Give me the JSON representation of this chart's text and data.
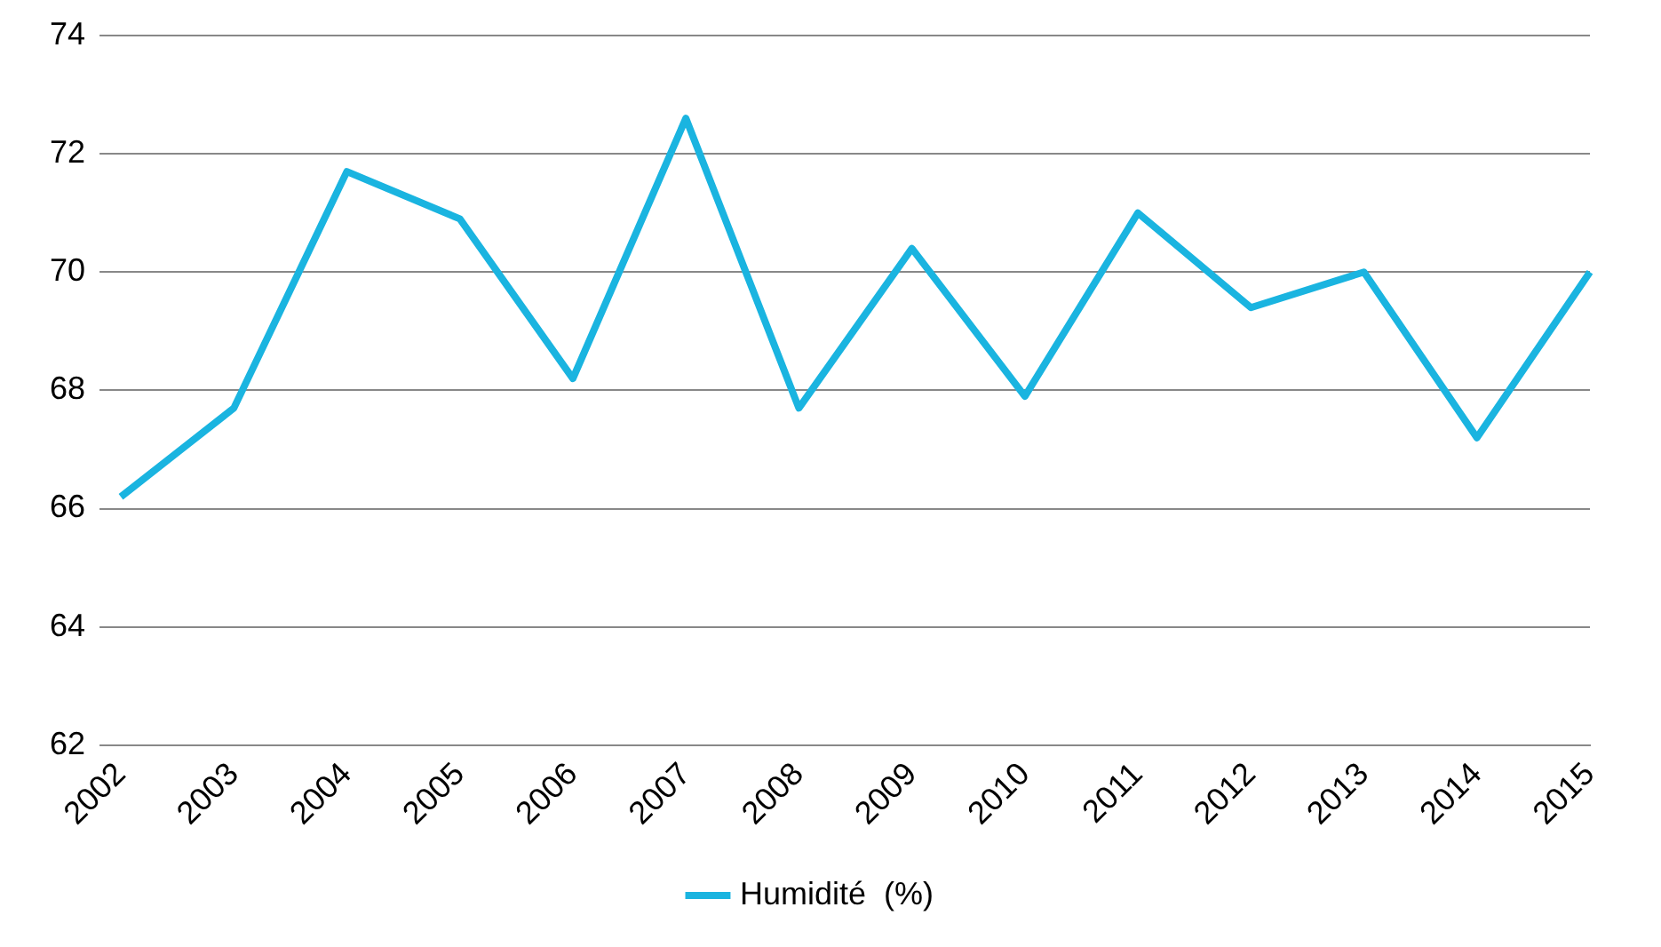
{
  "chart_data": {
    "type": "line",
    "categories": [
      "2002",
      "2003",
      "2004",
      "2005",
      "2006",
      "2007",
      "2008",
      "2009",
      "2010",
      "2011",
      "2012",
      "2013",
      "2014",
      "2015"
    ],
    "series": [
      {
        "name": "Humidité  (%)",
        "color": "#1ab4e0",
        "values": [
          66.2,
          67.7,
          71.7,
          70.9,
          68.2,
          72.6,
          67.7,
          70.4,
          67.9,
          71.0,
          69.4,
          70.0,
          67.2,
          70.0
        ]
      }
    ],
    "ylim": [
      62,
      74
    ],
    "yticks": [
      62,
      64,
      66,
      68,
      70,
      72,
      74
    ],
    "grid": "y",
    "legend": "bottom",
    "marker": "none",
    "line_style": "solid"
  }
}
